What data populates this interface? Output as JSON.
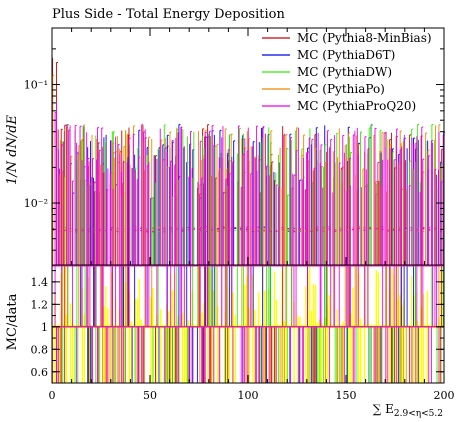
{
  "chart_data": {
    "type": "line",
    "title": "Plus Side - Total Energy Deposition",
    "upper": {
      "ylabel": "1/N dN/dE",
      "yscale": "log",
      "ylim": [
        0.003,
        0.3
      ],
      "yticks": [
        {
          "value": 0.1,
          "label": "10⁻¹"
        },
        {
          "value": 0.01,
          "label": "10⁻²"
        }
      ]
    },
    "ratio": {
      "ylabel": "MC/data",
      "ylim": [
        0.5,
        1.55
      ],
      "yticks": [
        "0.6",
        "0.8",
        "1",
        "1.2",
        "1.4"
      ],
      "band_color": "#ffff00"
    },
    "x": {
      "xlabel": "∑ E",
      "xlabel_sub": "2.9<η<5.2",
      "xlim": [
        0,
        200
      ],
      "xticks": [
        "0",
        "50",
        "100",
        "150",
        "200"
      ]
    },
    "series": [
      {
        "name": "MC (Pythia8-MinBias)",
        "color": "#cc0000"
      },
      {
        "name": "MC (PythiaD6T)",
        "color": "#0000ee"
      },
      {
        "name": "MC (PythiaDW)",
        "color": "#33ee00"
      },
      {
        "name": "MC (PythiaPo)",
        "color": "#ee8800"
      },
      {
        "name": "MC (PythiaProQ20)",
        "color": "#ee00ee"
      }
    ]
  }
}
